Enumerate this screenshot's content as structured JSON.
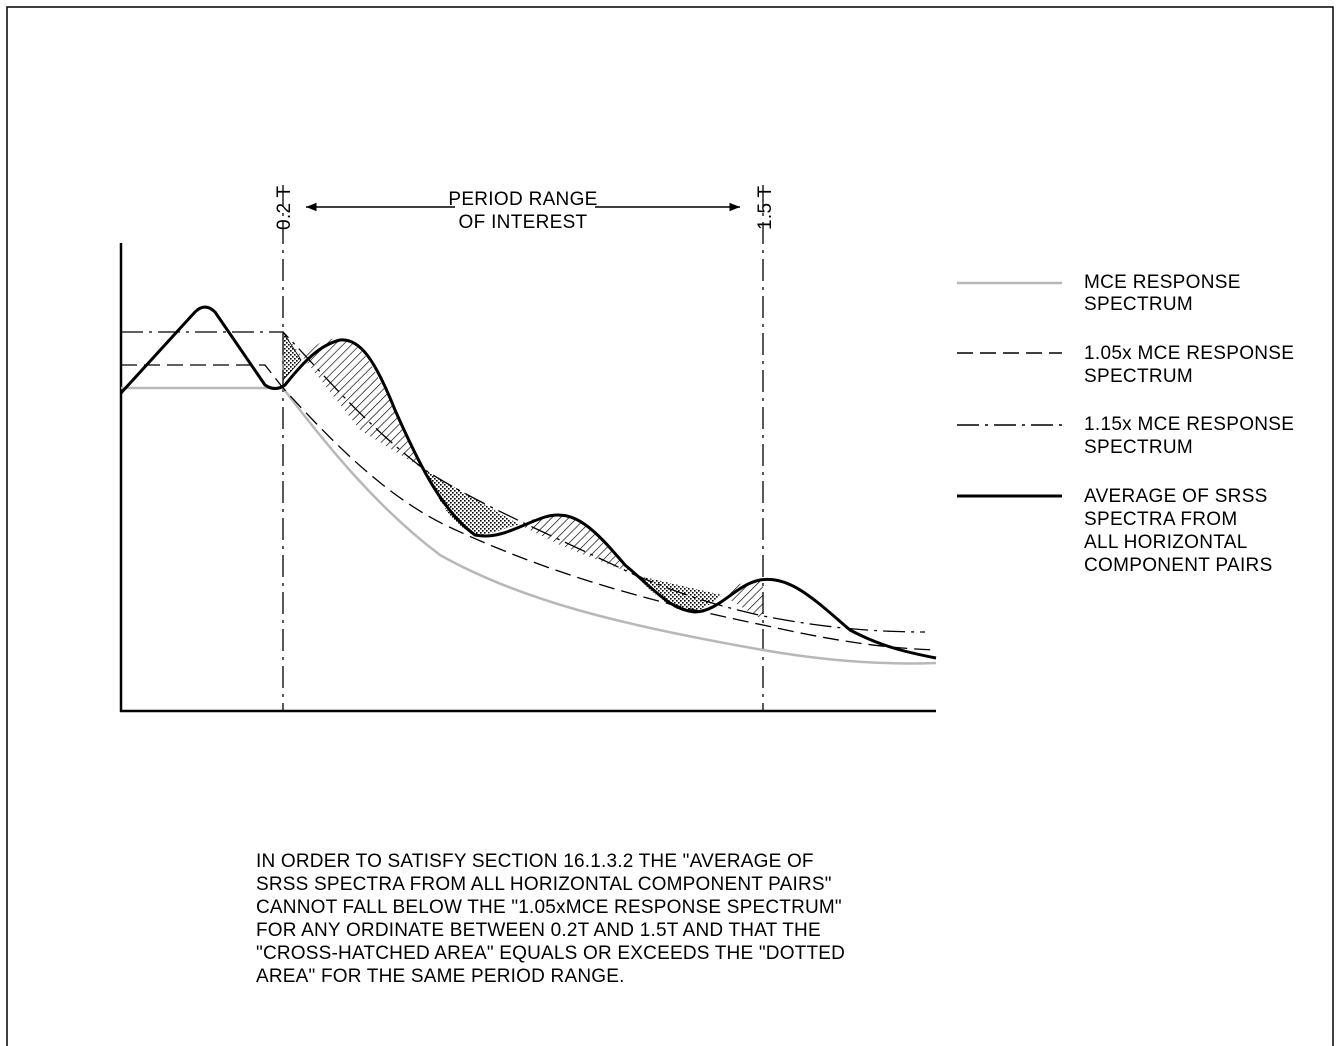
{
  "period_range": {
    "line1": "PERIOD RANGE",
    "line2": "OF INTEREST",
    "left_marker": "0.2 T",
    "right_marker": "1.5 T"
  },
  "legend": [
    {
      "style": "solid-gray",
      "color": "#b8b8b8",
      "lines": [
        "MCE RESPONSE",
        "SPECTRUM"
      ]
    },
    {
      "style": "dashed",
      "color": "#000000",
      "lines": [
        "1.05x MCE RESPONSE",
        "SPECTRUM"
      ]
    },
    {
      "style": "dash-dot",
      "color": "#000000",
      "lines": [
        "1.15x MCE RESPONSE",
        "SPECTRUM"
      ]
    },
    {
      "style": "thick-solid",
      "color": "#000000",
      "lines": [
        "AVERAGE OF SRSS",
        "SPECTRA FROM",
        "ALL HORIZONTAL",
        "COMPONENT PAIRS"
      ]
    }
  ],
  "note": [
    "IN ORDER TO SATISFY SECTION 16.1.3.2 THE \"AVERAGE OF",
    "SRSS SPECTRA FROM ALL HORIZONTAL COMPONENT PAIRS\"",
    "CANNOT FALL BELOW THE \"1.05xMCE RESPONSE SPECTRUM\"",
    "FOR ANY ORDINATE BETWEEN 0.2T AND 1.5T AND THAT THE",
    "\"CROSS-HATCHED AREA\" EQUALS OR EXCEEDS THE \"DOTTED",
    "AREA\" FOR THE SAME PERIOD RANGE."
  ]
}
